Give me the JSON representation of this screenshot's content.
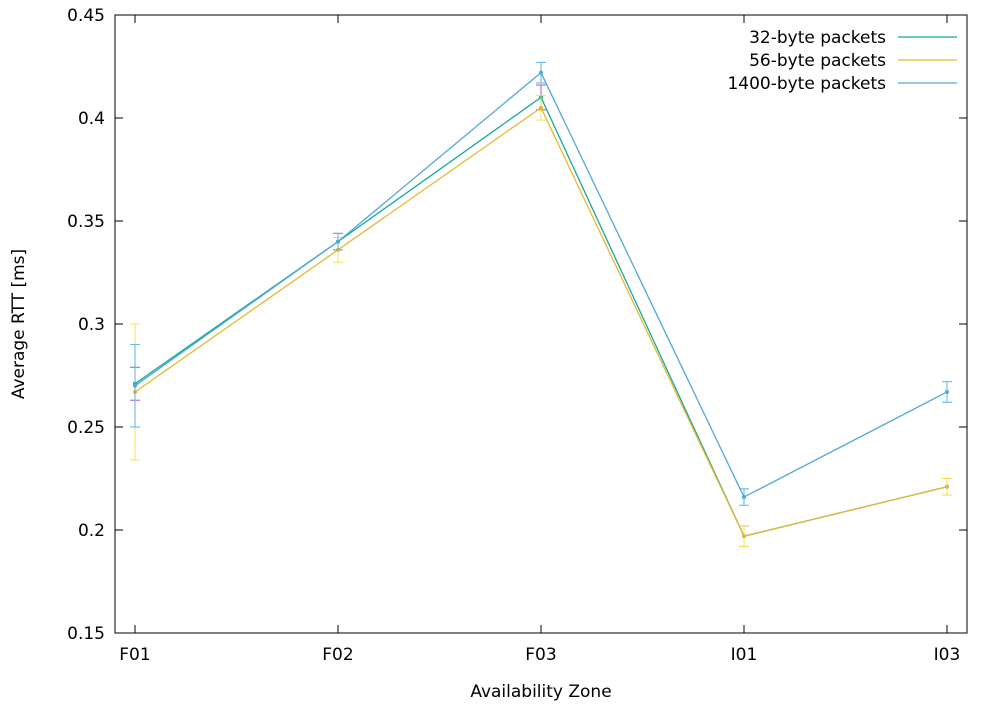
{
  "chart_data": {
    "type": "line",
    "title": "",
    "xlabel": "Availability Zone",
    "ylabel": "Average RTT [ms]",
    "categories": [
      "F01",
      "F02",
      "F03",
      "I01",
      "I03"
    ],
    "ylim": [
      0.15,
      0.45
    ],
    "yticks": [
      0.15,
      0.2,
      0.25,
      0.3,
      0.35,
      0.4,
      0.45
    ],
    "ytick_labels": [
      "0.15",
      "0.2",
      "0.25",
      "0.3",
      "0.35",
      "0.4",
      "0.45"
    ],
    "grid": false,
    "legend_position": "top-right",
    "error_bars": true,
    "series": [
      {
        "name": "32-byte packets",
        "color": "#17a89a",
        "values": [
          0.271,
          0.34,
          0.41,
          0.197,
          0.221
        ],
        "errors": [
          0.008,
          0.004,
          0.006,
          0.005,
          0.004
        ],
        "errorbar_color": "#9b59d6"
      },
      {
        "name": "56-byte packets",
        "color": "#e6b830",
        "values": [
          0.267,
          0.336,
          0.405,
          0.197,
          0.221
        ],
        "errors": [
          0.033,
          0.006,
          0.006,
          0.005,
          0.004
        ],
        "errorbar_color": "#f0e050"
      },
      {
        "name": "1400-byte packets",
        "color": "#4fa8d8",
        "values": [
          0.27,
          0.34,
          0.422,
          0.216,
          0.267
        ],
        "errors": [
          0.02,
          0.004,
          0.005,
          0.004,
          0.005
        ],
        "errorbar_color": "#56b4e9"
      }
    ]
  }
}
